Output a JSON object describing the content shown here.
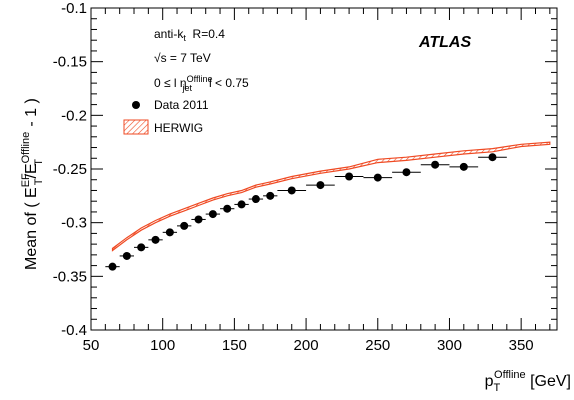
{
  "chart_data": {
    "type": "scatter",
    "title": "",
    "xlabel": {
      "base": "p",
      "sub": "T",
      "sup": "Offline",
      "unit": " [GeV]"
    },
    "ylabel": {
      "prefix": "Mean of ( E",
      "sup1": "EF",
      "sub1": "T",
      "mid": "/E",
      "sup2": "Offline",
      "sub2": "T",
      "suffix": " - 1 )"
    },
    "xlim": [
      50,
      375
    ],
    "ylim": [
      -0.4,
      -0.1
    ],
    "x_ticks": [
      "50",
      "100",
      "150",
      "200",
      "250",
      "300",
      "350"
    ],
    "y_ticks": [
      "-0.4",
      "-0.35",
      "-0.3",
      "-0.25",
      "-0.2",
      "-0.15",
      "-0.1"
    ],
    "x_tick_values": [
      50,
      100,
      150,
      200,
      250,
      300,
      350
    ],
    "y_tick_values": [
      -0.4,
      -0.35,
      -0.3,
      -0.25,
      -0.2,
      -0.15,
      -0.1
    ],
    "annotations": {
      "jet_algo": {
        "base": "anti-k",
        "sub": "t",
        "rest": "  R=0.4"
      },
      "energy": "√s = 7 TeV",
      "eta": {
        "pre": "0 ≤ l η",
        "sup": "Offline",
        "sub": "jet",
        "post": "l < 0.75"
      },
      "experiment": "ATLAS"
    },
    "legend": {
      "placement": "top-left",
      "entries": [
        "Data 2011",
        "HERWIG"
      ]
    },
    "series": [
      {
        "name": "Data 2011",
        "kind": "points",
        "color": "#000000",
        "x": [
          65,
          75,
          85,
          95,
          105,
          115,
          125,
          135,
          145,
          155,
          165,
          175,
          190,
          210,
          230,
          250,
          270,
          290,
          310,
          330
        ],
        "xerr": [
          5,
          5,
          5,
          5,
          5,
          5,
          5,
          5,
          5,
          5,
          5,
          5,
          10,
          10,
          10,
          10,
          10,
          10,
          10,
          10
        ],
        "y": [
          -0.341,
          -0.331,
          -0.323,
          -0.316,
          -0.309,
          -0.303,
          -0.297,
          -0.292,
          -0.287,
          -0.283,
          -0.278,
          -0.275,
          -0.27,
          -0.265,
          -0.257,
          -0.258,
          -0.253,
          -0.246,
          -0.248,
          -0.239
        ]
      },
      {
        "name": "HERWIG",
        "kind": "band",
        "color": "#ef4a23",
        "x": [
          65,
          75,
          85,
          95,
          105,
          115,
          125,
          135,
          145,
          155,
          165,
          175,
          190,
          210,
          230,
          250,
          270,
          290,
          310,
          330,
          350,
          370
        ],
        "y_low": [
          -0.326,
          -0.316,
          -0.307,
          -0.3,
          -0.294,
          -0.289,
          -0.284,
          -0.279,
          -0.275,
          -0.272,
          -0.267,
          -0.264,
          -0.259,
          -0.254,
          -0.25,
          -0.244,
          -0.242,
          -0.239,
          -0.236,
          -0.234,
          -0.229,
          -0.227
        ],
        "y_high": [
          -0.324,
          -0.314,
          -0.305,
          -0.298,
          -0.292,
          -0.287,
          -0.282,
          -0.277,
          -0.273,
          -0.27,
          -0.265,
          -0.262,
          -0.257,
          -0.252,
          -0.248,
          -0.241,
          -0.239,
          -0.236,
          -0.233,
          -0.231,
          -0.227,
          -0.225
        ]
      }
    ]
  }
}
